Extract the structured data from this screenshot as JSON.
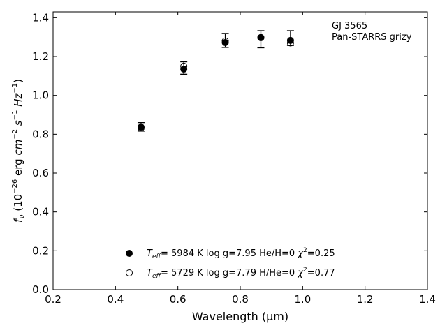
{
  "chart_data": {
    "type": "scatter",
    "title": "",
    "xlabel": "Wavelength (μm)",
    "ylabel": "fν (10⁻²⁶ erg cm⁻² s⁻¹ Hz⁻¹)",
    "xlim": [
      0.2,
      1.4
    ],
    "ylim": [
      0.0,
      1.43
    ],
    "xticks": [
      "0.2",
      "0.4",
      "0.6",
      "0.8",
      "1.0",
      "1.2",
      "1.4"
    ],
    "yticks": [
      "0.0",
      "0.2",
      "0.4",
      "0.6",
      "0.8",
      "1.0",
      "1.2",
      "1.4"
    ],
    "grid": false,
    "annotation": [
      "GJ 3565",
      "Pan-STARRS grizy"
    ],
    "observed": {
      "x": [
        0.482,
        0.619,
        0.752,
        0.866,
        0.961
      ],
      "y": [
        0.838,
        1.141,
        1.283,
        1.289,
        1.295
      ],
      "err": [
        0.022,
        0.032,
        0.036,
        0.044,
        0.038
      ],
      "color": "#000000"
    },
    "series": [
      {
        "marker": "filled-circle",
        "label": {
          "teff": "5984 K",
          "logg": "log g=7.95",
          "comp": "He/H=0",
          "chi": "=0.25"
        },
        "x": [
          0.482,
          0.619,
          0.752,
          0.866,
          0.961
        ],
        "y": [
          0.837,
          1.135,
          1.272,
          1.297,
          1.283
        ]
      },
      {
        "marker": "open-circle",
        "label": {
          "teff": "5729 K",
          "logg": "log g=7.79",
          "comp": "H/He=0",
          "chi": "=0.77"
        },
        "x": [
          0.482,
          0.619,
          0.752,
          0.866,
          0.961
        ],
        "y": [
          0.832,
          1.15,
          1.28,
          1.298,
          1.27
        ]
      }
    ],
    "legend_position": "bottom-center"
  }
}
